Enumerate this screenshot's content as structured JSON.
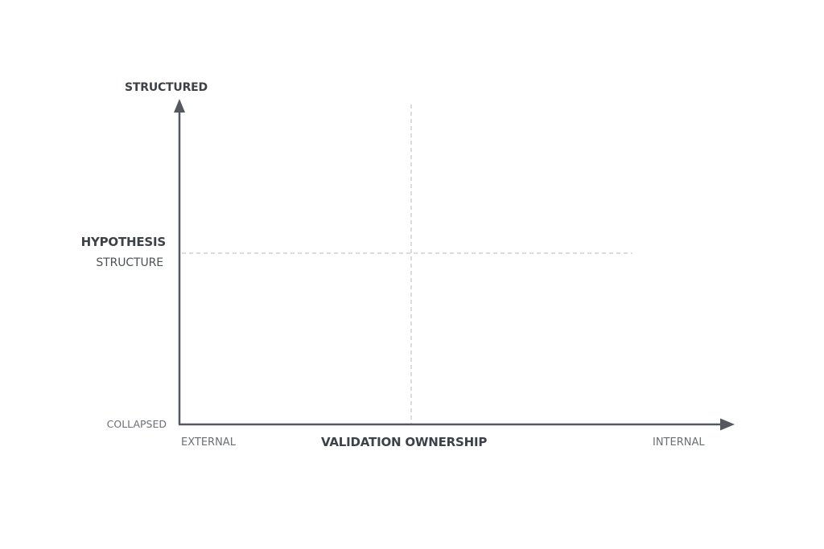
{
  "diagram": {
    "y_axis": {
      "top_label": "STRUCTURED",
      "title_line1": "HYPOTHESIS",
      "title_line2": "STRUCTURE",
      "bottom_label": "COLLAPSED"
    },
    "x_axis": {
      "left_label": "EXTERNAL",
      "title": "VALIDATION OWNERSHIP",
      "right_label": "INTERNAL"
    },
    "colors": {
      "axis": "#55595f",
      "divider": "#b8b8b8",
      "title_text": "#3d4148",
      "muted_text": "#6a6e75"
    }
  }
}
